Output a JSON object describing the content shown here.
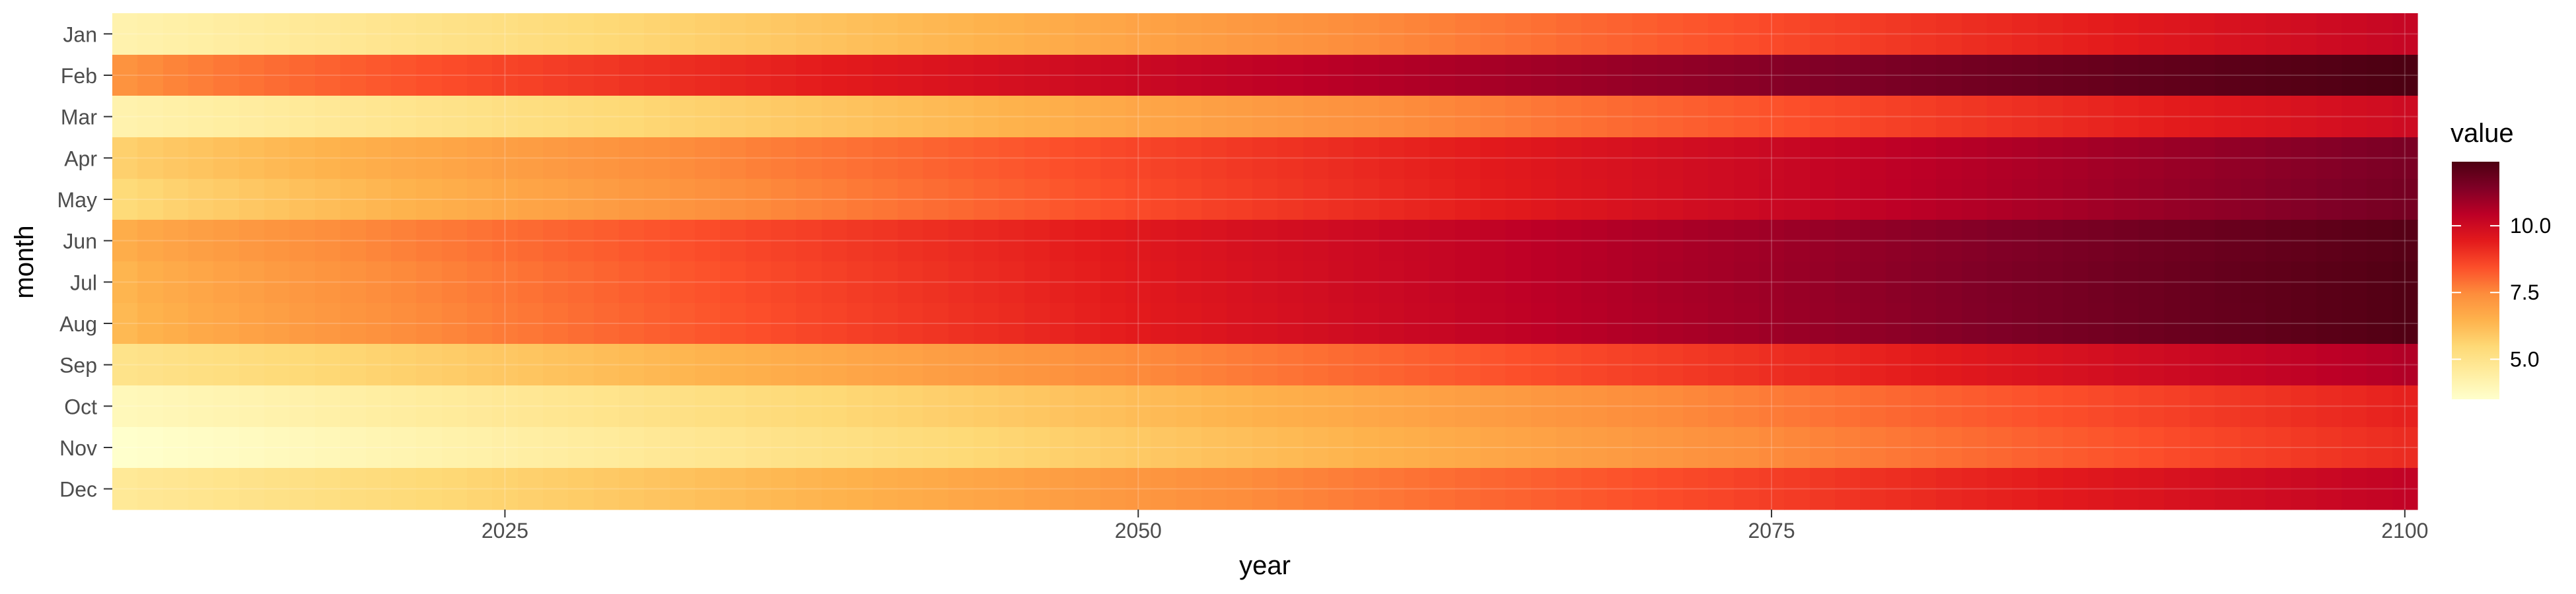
{
  "chart_data": {
    "type": "heatmap",
    "title": "",
    "xlabel": "year",
    "ylabel": "month",
    "x_start": 2010,
    "x_end": 2100,
    "xlim": [
      2009.5,
      2100.5
    ],
    "x_ticks": [
      2025,
      2050,
      2075,
      2100
    ],
    "months": [
      "Jan",
      "Feb",
      "Mar",
      "Apr",
      "May",
      "Jun",
      "Jul",
      "Aug",
      "Sep",
      "Oct",
      "Nov",
      "Dec"
    ],
    "value_start": [
      4.2,
      7.3,
      4.2,
      5.7,
      5.4,
      6.6,
      6.4,
      6.3,
      5.0,
      3.9,
      3.5,
      4.7
    ],
    "value_end": [
      10.2,
      12.4,
      10.0,
      11.5,
      11.6,
      12.2,
      12.3,
      12.3,
      10.6,
      9.3,
      9.1,
      10.3
    ],
    "curve_exponent": [
      1.0,
      0.75,
      1.0,
      0.85,
      0.85,
      0.8,
      0.8,
      0.8,
      1.0,
      1.05,
      1.05,
      1.0
    ],
    "legend": {
      "title": "value",
      "ticks": [
        5.0,
        7.5,
        10.0
      ],
      "tick_labels": [
        "5.0",
        "7.5",
        "10.0"
      ],
      "range": [
        3.5,
        12.4
      ],
      "position": "right"
    },
    "colorscale": [
      "#ffffcc",
      "#ffeda0",
      "#fed976",
      "#feb24c",
      "#fd8d3c",
      "#fc4e2a",
      "#e31a1c",
      "#bd0026",
      "#800026",
      "#4d0012"
    ],
    "grid": true
  }
}
